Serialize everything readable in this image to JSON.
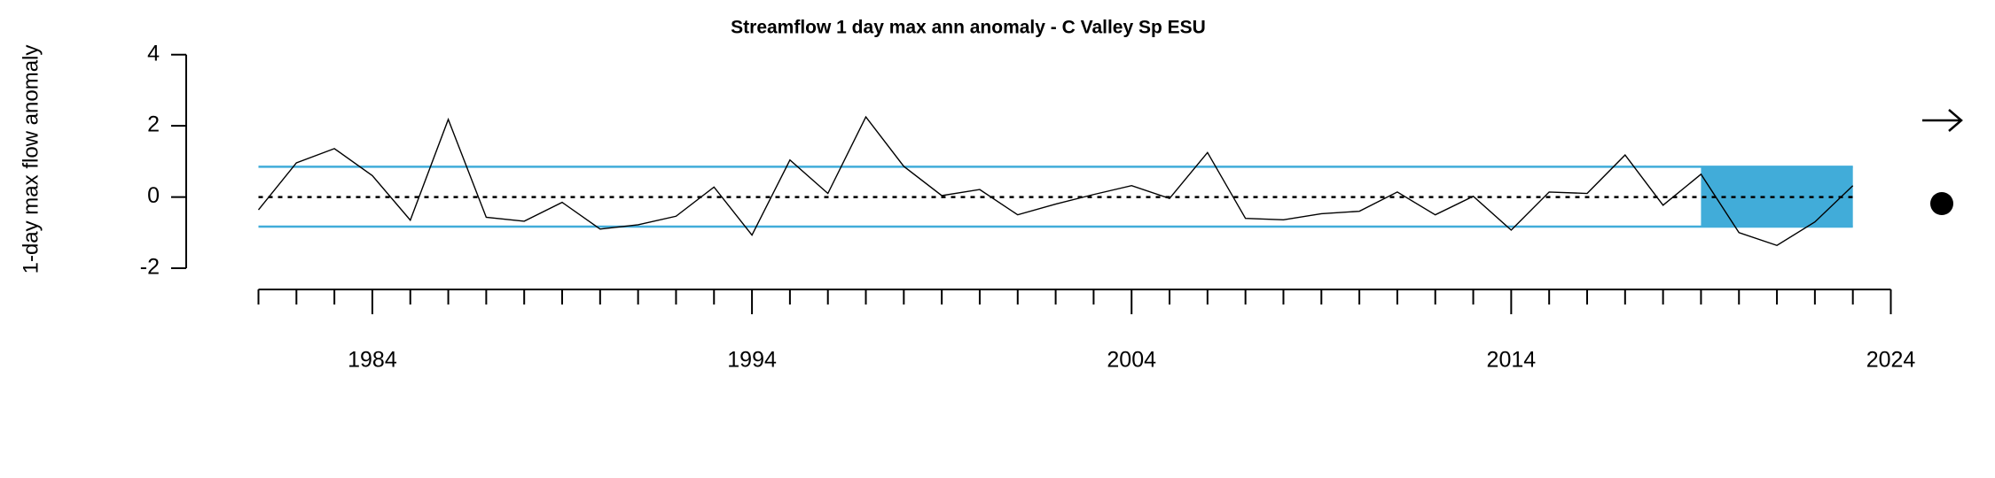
{
  "chart_data": {
    "type": "line",
    "title": "Streamflow 1 day max ann anomaly - C Valley Sp ESU",
    "y_label": "1-day max flow anomaly",
    "x": [
      1981,
      1982,
      1983,
      1984,
      1985,
      1986,
      1987,
      1988,
      1989,
      1990,
      1991,
      1992,
      1993,
      1994,
      1995,
      1996,
      1997,
      1998,
      1999,
      2000,
      2001,
      2002,
      2003,
      2004,
      2005,
      2006,
      2007,
      2008,
      2009,
      2010,
      2011,
      2012,
      2013,
      2014,
      2015,
      2016,
      2017,
      2018,
      2019,
      2020,
      2021,
      2022,
      2023
    ],
    "series": [
      {
        "name": "anomaly",
        "color": "#000000",
        "values": [
          -0.36,
          0.96,
          1.36,
          0.6,
          -0.65,
          2.18,
          -0.57,
          -0.68,
          -0.15,
          -0.9,
          -0.78,
          -0.54,
          0.28,
          -1.07,
          1.04,
          0.1,
          2.25,
          0.86,
          0.04,
          0.21,
          -0.5,
          -0.2,
          0.07,
          0.32,
          -0.04,
          1.25,
          -0.6,
          -0.64,
          -0.47,
          -0.4,
          0.14,
          -0.5,
          0.02,
          -0.93,
          0.14,
          0.1,
          1.18,
          -0.23,
          0.64,
          -1.0,
          -1.36,
          -0.7,
          0.32
        ]
      }
    ],
    "mean": 0,
    "upper": 0.85,
    "lower": -0.83,
    "band_color": "#41acd9",
    "shade_x": [
      2019,
      2023
    ],
    "xlim": [
      1981,
      2024
    ],
    "xticks": [
      1984,
      1994,
      2004,
      2014,
      2024
    ],
    "xticks_minor": [
      1981,
      1982,
      1983,
      1985,
      1986,
      1987,
      1988,
      1989,
      1990,
      1991,
      1992,
      1993,
      1995,
      1996,
      1997,
      1998,
      1999,
      2000,
      2001,
      2002,
      2003,
      2005,
      2006,
      2007,
      2008,
      2009,
      2010,
      2011,
      2012,
      2013,
      2015,
      2016,
      2017,
      2018,
      2019,
      2020,
      2021,
      2022,
      2023
    ],
    "ylim": [
      -2,
      4
    ],
    "yticks": [
      4,
      2,
      0,
      -2
    ]
  }
}
